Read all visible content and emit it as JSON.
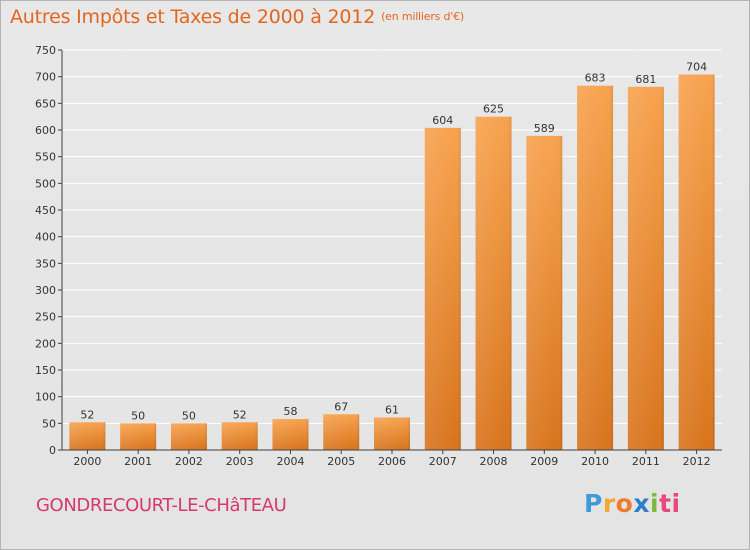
{
  "title": "Autres Impôts et Taxes de 2000 à 2012",
  "unit": "(en milliers d'€)",
  "location": "GONDRECOURT-LE-CHâTEAU",
  "brand": [
    "P",
    "r",
    "o",
    "x",
    "i",
    "ti"
  ],
  "colors": {
    "title": "#e3661e",
    "bar_top": "#f7a24e",
    "bar_bottom": "#d8741c",
    "grid": "#ffffff",
    "axis": "#404040"
  },
  "chart_data": {
    "type": "bar",
    "categories": [
      "2000",
      "2001",
      "2002",
      "2003",
      "2004",
      "2005",
      "2006",
      "2007",
      "2008",
      "2009",
      "2010",
      "2011",
      "2012"
    ],
    "values": [
      52,
      50,
      50,
      52,
      58,
      67,
      61,
      604,
      625,
      589,
      683,
      681,
      704
    ],
    "ylim": [
      0,
      750
    ],
    "yticks": [
      0,
      50,
      100,
      150,
      200,
      250,
      300,
      350,
      400,
      450,
      500,
      550,
      600,
      650,
      700,
      750
    ],
    "grid": true,
    "legend": "none",
    "xlabel": "",
    "ylabel": ""
  }
}
